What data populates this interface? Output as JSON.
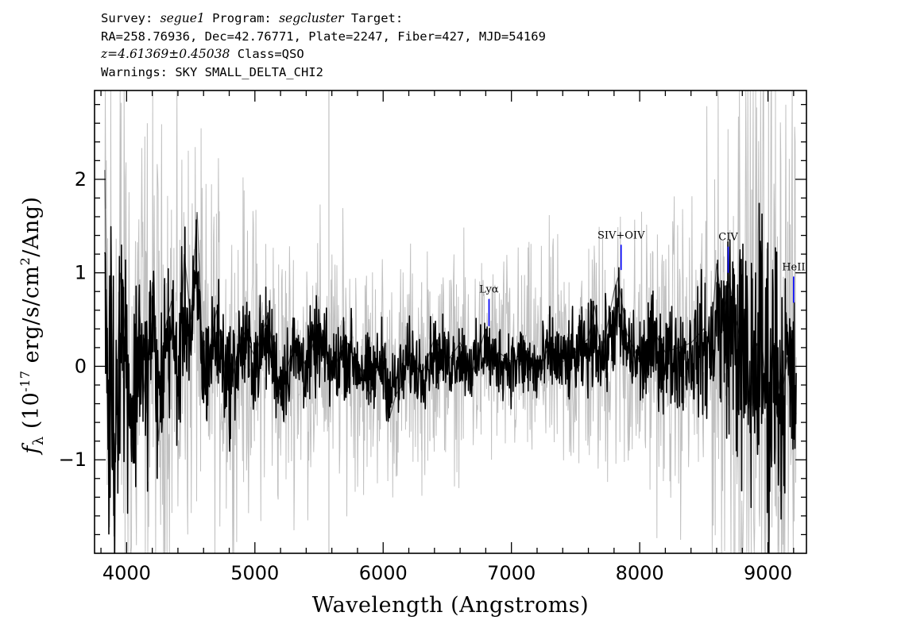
{
  "header": {
    "survey_label": "Survey:",
    "survey": "segue1",
    "program_label": "Program:",
    "program": "segcluster",
    "target_label": "Target:",
    "coords": "RA=258.76936, Dec=42.76771, Plate=2247, Fiber=427, MJD=54169",
    "redshift": "z=4.61369±0.45038",
    "class": "Class=QSO",
    "warnings": "Warnings: SKY SMALL_DELTA_CHI2"
  },
  "chart_data": {
    "type": "line",
    "xlabel": "Wavelength (Angstroms)",
    "ylabel": "f_λ (10^-17 erg/s/cm^2/Ang)",
    "xlim": [
      3750,
      9300
    ],
    "ylim": [
      -2.0,
      2.95
    ],
    "x_ticks": [
      4000,
      5000,
      6000,
      7000,
      8000,
      9000
    ],
    "y_ticks": [
      -1,
      0,
      1,
      2
    ],
    "x_tick_labels": [
      "4000",
      "5000",
      "6000",
      "7000",
      "8000",
      "9000"
    ],
    "y_tick_labels": [
      "−1",
      "0",
      "1",
      "2"
    ],
    "colors": {
      "flux": "#000000",
      "error": "#c0c0c0",
      "line_marker": "#0000ff"
    },
    "series": [
      {
        "role": "error band (grey)",
        "x": [
          3830,
          3900,
          4000,
          4100,
          4200,
          4300,
          4400,
          4500,
          4600,
          4800,
          5000,
          5200,
          5400,
          5600,
          5800,
          6000,
          6200,
          6400,
          6600,
          6800,
          7000,
          7200,
          7400,
          7600,
          7800,
          8000,
          8200,
          8400,
          8600,
          8800,
          9000,
          9200
        ],
        "values": [
          2.6,
          2.4,
          2.0,
          1.7,
          1.5,
          1.35,
          1.25,
          1.15,
          1.05,
          0.95,
          0.85,
          0.8,
          0.75,
          0.72,
          0.7,
          0.65,
          0.62,
          0.6,
          0.6,
          0.6,
          0.62,
          0.65,
          0.68,
          0.72,
          0.78,
          0.82,
          0.85,
          0.9,
          1.3,
          2.2,
          2.6,
          1.6
        ]
      },
      {
        "role": "flux (black)",
        "x": [
          3830,
          3860,
          3880,
          3900,
          3950,
          4000,
          4050,
          4100,
          4150,
          4200,
          4250,
          4300,
          4350,
          4400,
          4450,
          4500,
          4550,
          4600,
          4700,
          4800,
          4900,
          5000,
          5100,
          5200,
          5300,
          5400,
          5500,
          5600,
          5700,
          5800,
          5900,
          6000,
          6050,
          6100,
          6150,
          6200,
          6300,
          6400,
          6500,
          6600,
          6700,
          6800,
          6850,
          6900,
          7000,
          7100,
          7200,
          7300,
          7400,
          7500,
          7600,
          7650,
          7700,
          7800,
          7830,
          7900,
          8000,
          8100,
          8200,
          8300,
          8400,
          8500,
          8550,
          8600,
          8650,
          8700,
          8750,
          8800,
          8850,
          8900,
          8950,
          9000,
          9050,
          9100,
          9150,
          9200,
          9220
        ],
        "values": [
          2.1,
          -1.2,
          0.8,
          -1.5,
          1.0,
          0.2,
          -1.0,
          0.6,
          -0.5,
          0.9,
          -0.8,
          0.4,
          0.7,
          -0.3,
          1.2,
          0.5,
          1.65,
          -0.2,
          0.6,
          -0.3,
          0.4,
          0.1,
          0.55,
          -0.35,
          0.25,
          0.0,
          0.45,
          -0.1,
          0.3,
          0.05,
          -0.3,
          0.2,
          -0.55,
          -0.3,
          -0.2,
          0.15,
          -0.1,
          0.3,
          0.05,
          0.25,
          -0.05,
          0.4,
          0.05,
          0.15,
          0.05,
          0.1,
          -0.1,
          0.25,
          0.05,
          0.15,
          0.3,
          0.65,
          0.1,
          0.8,
          0.95,
          0.35,
          0.05,
          0.4,
          0.15,
          0.2,
          0.25,
          0.4,
          0.2,
          1.1,
          0.55,
          0.9,
          0.5,
          0.2,
          -0.45,
          0.2,
          0.3,
          -0.5,
          0.25,
          -0.4,
          0.1,
          -0.7,
          -0.5
        ]
      }
    ],
    "emission_lines": [
      {
        "label": "Lyα",
        "x": 6825,
        "y": [
          0.43,
          0.72
        ]
      },
      {
        "label": "SIV+OIV",
        "x": 7855,
        "y": [
          1.03,
          1.3
        ]
      },
      {
        "label": "CIV",
        "x": 8690,
        "y": [
          1.0,
          1.28
        ]
      },
      {
        "label": "HeII",
        "x": 9200,
        "y": [
          0.68,
          0.96
        ]
      }
    ]
  }
}
